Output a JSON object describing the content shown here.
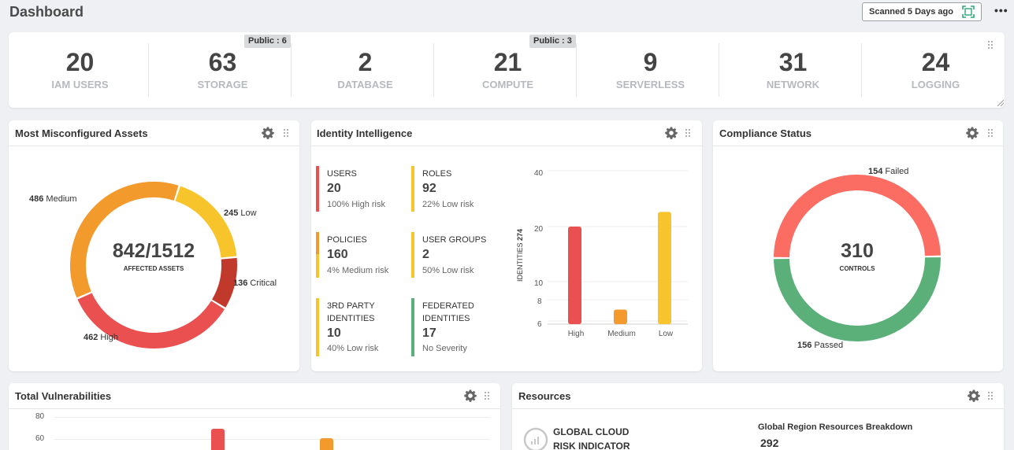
{
  "header": {
    "title": "Dashboard",
    "scan_label": "Scanned 5 Days ago",
    "scan_icon": "scan-icon",
    "more_label": "•••"
  },
  "stats": [
    {
      "value": "20",
      "label": "IAM USERS",
      "badge": ""
    },
    {
      "value": "63",
      "label": "STORAGE",
      "badge": "Public : 6"
    },
    {
      "value": "2",
      "label": "DATABASE",
      "badge": ""
    },
    {
      "value": "21",
      "label": "COMPUTE",
      "badge": "Public : 3"
    },
    {
      "value": "9",
      "label": "SERVERLESS",
      "badge": ""
    },
    {
      "value": "31",
      "label": "NETWORK",
      "badge": ""
    },
    {
      "value": "24",
      "label": "LOGGING",
      "badge": ""
    }
  ],
  "misconfigured": {
    "title": "Most Misconfigured Assets",
    "center_value": "842/1512",
    "center_label": "AFFECTED ASSETS",
    "segments": [
      {
        "name": "Low",
        "value": 245,
        "color": "#f8c42c"
      },
      {
        "name": "Critical",
        "value": 136,
        "color": "#c0392b"
      },
      {
        "name": "High",
        "value": 462,
        "color": "#e9504f"
      },
      {
        "name": "Medium",
        "value": 486,
        "color": "#f39a2d"
      }
    ],
    "labels": {
      "medium_num": "486",
      "medium_txt": "Medium",
      "low_num": "245",
      "low_txt": "Low",
      "critical_num": "136",
      "critical_txt": "Critical",
      "high_num": "462",
      "high_txt": "High"
    }
  },
  "identity": {
    "title": "Identity Intelligence",
    "items": [
      {
        "title": "USERS",
        "value": "20",
        "sub": "100% High risk",
        "color": "#e9504f"
      },
      {
        "title": "ROLES",
        "value": "92",
        "sub": "22% Low risk",
        "color": "#f8c42c"
      },
      {
        "title": "POLICIES",
        "value": "160",
        "sub": "4% Medium risk",
        "color": "#f39a2d"
      },
      {
        "title": "USER GROUPS",
        "value": "2",
        "sub": "50% Low risk",
        "color": "#f8c42c"
      },
      {
        "title": "3RD PARTY IDENTITIES",
        "value": "10",
        "sub": "40% Low risk",
        "color": "#f8c42c"
      },
      {
        "title": "FEDERATED IDENTITIES",
        "value": "17",
        "sub": "No Severity",
        "color": "#5bb07a"
      }
    ],
    "chart_data": {
      "type": "bar",
      "categories": [
        "High",
        "Medium",
        "Low"
      ],
      "values": [
        20,
        7,
        24
      ],
      "colors": [
        "#e9504f",
        "#f39a2d",
        "#f8c42c"
      ],
      "ylabel": "IDENTITIES",
      "ylabel_total": "274",
      "yticks": [
        "40",
        "20",
        "10",
        "8",
        "6"
      ]
    }
  },
  "compliance": {
    "title": "Compliance Status",
    "center_value": "310",
    "center_label": "CONTROLS",
    "failed_num": "154",
    "failed_txt": "Failed",
    "passed_num": "156",
    "passed_txt": "Passed",
    "failed_color": "#fb6c62",
    "passed_color": "#5bb07a"
  },
  "vulnerabilities": {
    "title": "Total Vulnerabilities",
    "yticks": [
      "80",
      "60"
    ],
    "bar_colors": [
      "#e9504f",
      "#f39a2d"
    ]
  },
  "resources": {
    "title": "Resources",
    "risk_title_1": "GLOBAL CLOUD",
    "risk_title_2": "RISK INDICATOR",
    "region_title": "Global Region Resources Breakdown",
    "region_value": "292"
  }
}
